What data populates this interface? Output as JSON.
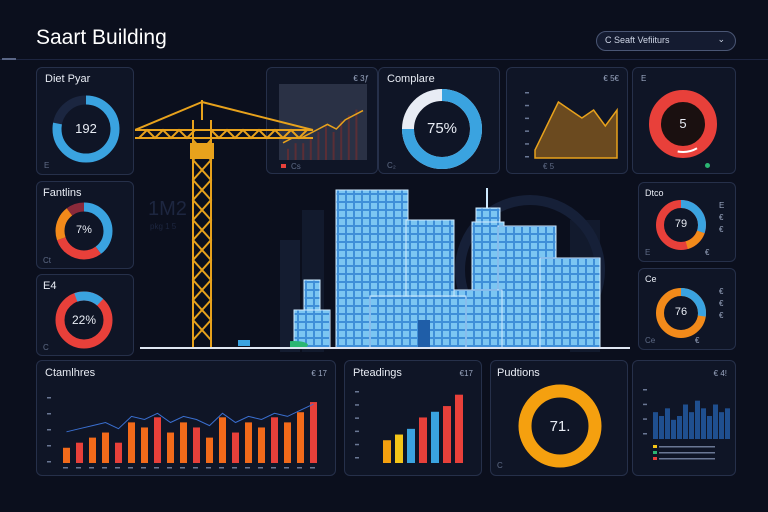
{
  "header": {
    "title": "Saart Building",
    "selector_label": "C Seaft Vefiiturs",
    "chevron": "chevron-down-icon"
  },
  "panels": {
    "diet_pyar": {
      "title": "Diet Pyar",
      "value": "192",
      "foot": "E",
      "fraction": 0.78,
      "color": "#3aa3e0"
    },
    "chart_top": {
      "meta": "€ 3ƒ",
      "foot": "Cs"
    },
    "complare": {
      "title": "Complare",
      "value": "75%",
      "fraction": 0.75,
      "color": "#3aa3e0"
    },
    "area_chart": {
      "meta": "€ 5€",
      "foot": "€ 5"
    },
    "right_top": {
      "meta": "E",
      "value": "5",
      "color": "#e8403a"
    },
    "fantlins": {
      "title": "Fantlins",
      "value": "7%",
      "foot": "Ct"
    },
    "bg_big_text": "1M2",
    "bg_sub_text": "pkg 1 5",
    "left_pie_2": {
      "title": "E4",
      "value": "22%",
      "foot": "C"
    },
    "right_mid": {
      "title": "Dtco",
      "value": "79",
      "foot": "E",
      "legend": [
        "E",
        "€",
        "€",
        "€"
      ]
    },
    "right_low": {
      "title": "Ce",
      "value": "76",
      "foot": "Ce",
      "legend": [
        "€",
        "€",
        "€",
        "€"
      ]
    },
    "bottom_1": {
      "title": "Ctamlhres",
      "meta": "€ 17"
    },
    "bottom_2": {
      "title": "Pteadings",
      "meta": "€17"
    },
    "bottom_3": {
      "title": "Pudtions",
      "value": "71.",
      "foot": "C"
    },
    "bottom_4": {
      "meta": "€ 4!"
    }
  },
  "colors": {
    "background": "#0b0f1d",
    "panel": "#0f1526",
    "blue": "#3aa3e0",
    "red": "#e8403a",
    "orange": "#f28a1a",
    "yellow": "#f5c518",
    "crane": "#e8a21c"
  },
  "chart_data": [
    {
      "type": "line",
      "series": [
        {
          "values": [
            2,
            3,
            3,
            4,
            5,
            6,
            5,
            7,
            8,
            9
          ]
        }
      ]
    },
    {
      "type": "area",
      "series": [
        {
          "values": [
            1,
            4,
            7,
            6,
            5,
            6,
            4,
            6
          ]
        }
      ]
    },
    {
      "type": "bar",
      "categories": [
        "b1",
        "b2",
        "b3",
        "b4",
        "b5",
        "b6",
        "b7",
        "b8",
        "b9",
        "b10",
        "b11",
        "b12",
        "b13",
        "b14",
        "b15",
        "b16",
        "b17",
        "b18",
        "b19",
        "b20"
      ],
      "series": [
        {
          "values": [
            3,
            4,
            5,
            6,
            4,
            8,
            7,
            9,
            6,
            8,
            7,
            5,
            9,
            6,
            8,
            7,
            9,
            8,
            10,
            12
          ]
        }
      ]
    },
    {
      "type": "bar",
      "categories": [
        "c1",
        "c2",
        "c3",
        "c4",
        "c5",
        "c6",
        "c7"
      ],
      "series": [
        {
          "values": [
            4,
            5,
            6,
            8,
            9,
            10,
            12
          ]
        }
      ]
    },
    {
      "type": "bar",
      "categories": [
        "d1",
        "d2",
        "d3",
        "d4",
        "d5",
        "d6",
        "d7",
        "d8",
        "d9",
        "d10",
        "d11",
        "d12",
        "d13"
      ],
      "series": [
        {
          "values": [
            7,
            6,
            8,
            5,
            6,
            9,
            7,
            10,
            8,
            6,
            9,
            7,
            8
          ]
        }
      ]
    }
  ]
}
